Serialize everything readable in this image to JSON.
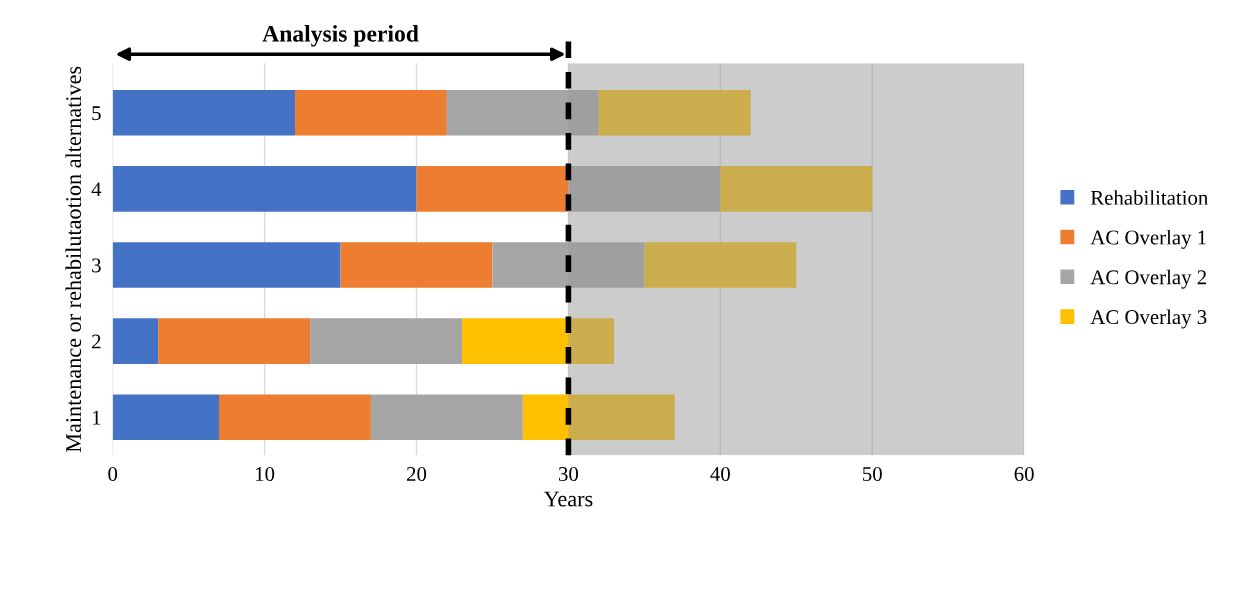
{
  "chart_data": {
    "type": "bar",
    "orientation": "horizontal",
    "stacked": true,
    "xlabel": "Years",
    "ylabel": "Maintenance or rehabilutaotion alternatives",
    "categories": [
      "5",
      "4",
      "3",
      "2",
      "1"
    ],
    "series": [
      {
        "name": "Rehabilitation",
        "color": "#4472c4",
        "values": [
          12,
          20,
          15,
          3,
          7
        ]
      },
      {
        "name": "AC Overlay 1",
        "color": "#ed7d31",
        "values": [
          10,
          10,
          10,
          10,
          10
        ]
      },
      {
        "name": "AC Overlay 2",
        "color": "#a5a5a5",
        "values": [
          10,
          10,
          10,
          10,
          10
        ]
      },
      {
        "name": "AC Overlay 3",
        "color": "#ffc000",
        "values": [
          10,
          10,
          10,
          10,
          10
        ]
      }
    ],
    "xlim": [
      0,
      60
    ],
    "xticks": [
      0,
      10,
      20,
      30,
      40,
      50,
      60
    ],
    "grid": "x",
    "legend": "right",
    "bands": [
      {
        "axis": "x",
        "from": 30,
        "to": 60,
        "color": "#999999"
      }
    ],
    "ref_lines": [
      {
        "axis": "x",
        "value": 30,
        "color": "#000000",
        "line_style": "dashed"
      }
    ],
    "annotations": [
      "Analysis period"
    ]
  }
}
